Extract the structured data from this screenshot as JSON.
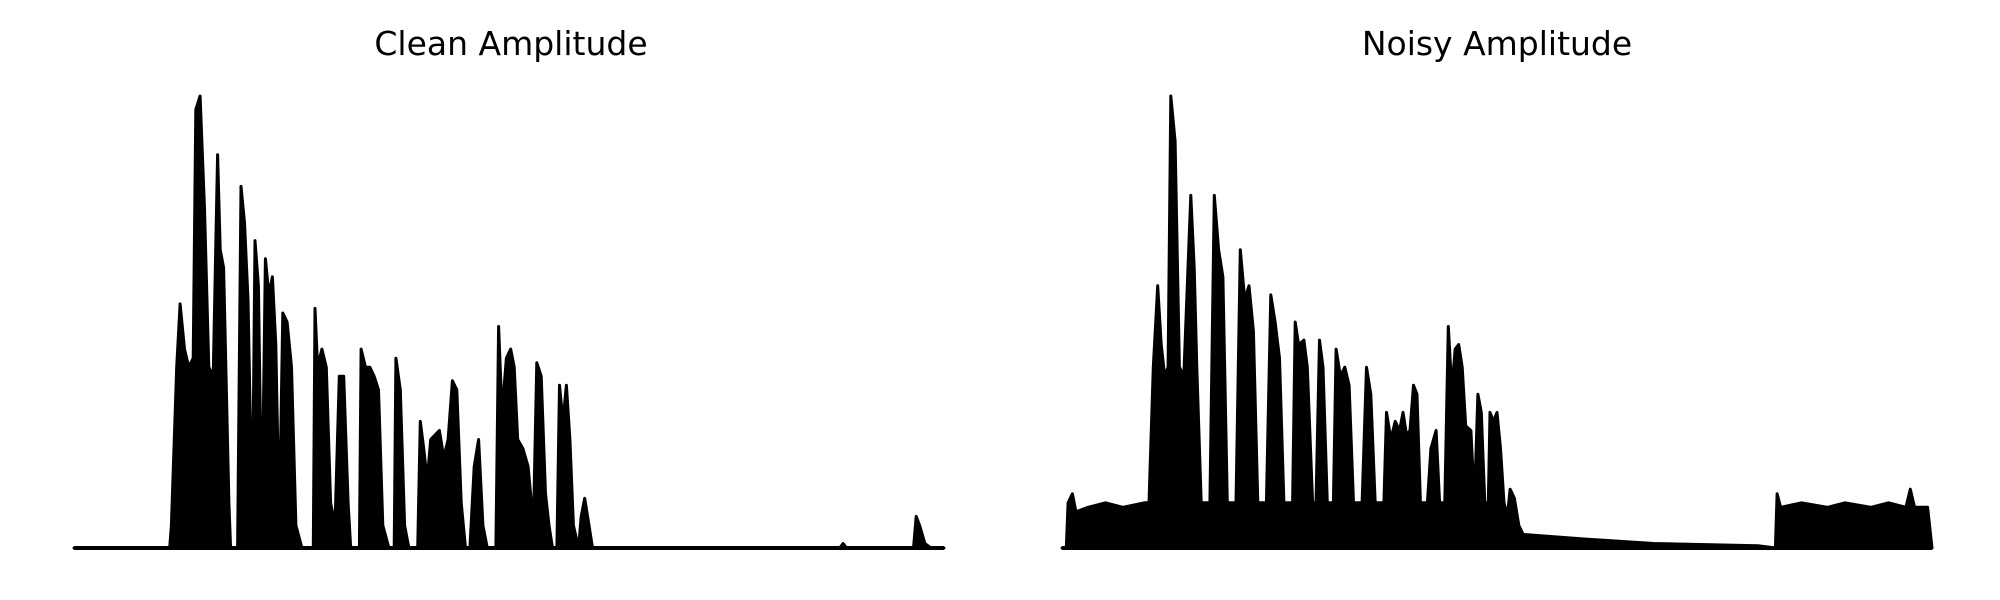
{
  "chart_data": [
    {
      "type": "area",
      "title": "Clean Amplitude",
      "xlabel": "",
      "ylabel": "",
      "axes": "off",
      "grid": false,
      "xlim": [
        0,
        1
      ],
      "ylim": [
        0,
        1
      ],
      "envelope": [
        [
          0.0,
          0.0
        ],
        [
          0.11,
          0.0
        ],
        [
          0.112,
          0.05
        ],
        [
          0.118,
          0.4
        ],
        [
          0.122,
          0.54
        ],
        [
          0.127,
          0.44
        ],
        [
          0.132,
          0.4
        ],
        [
          0.137,
          0.42
        ],
        [
          0.14,
          0.97
        ],
        [
          0.145,
          1.0
        ],
        [
          0.15,
          0.75
        ],
        [
          0.155,
          0.4
        ],
        [
          0.16,
          0.38
        ],
        [
          0.165,
          0.87
        ],
        [
          0.168,
          0.66
        ],
        [
          0.172,
          0.62
        ],
        [
          0.178,
          0.1
        ],
        [
          0.18,
          0.0
        ],
        [
          0.188,
          0.0
        ],
        [
          0.192,
          0.8
        ],
        [
          0.196,
          0.72
        ],
        [
          0.2,
          0.55
        ],
        [
          0.205,
          0.05
        ],
        [
          0.208,
          0.68
        ],
        [
          0.212,
          0.58
        ],
        [
          0.216,
          0.05
        ],
        [
          0.22,
          0.64
        ],
        [
          0.224,
          0.56
        ],
        [
          0.228,
          0.6
        ],
        [
          0.232,
          0.45
        ],
        [
          0.236,
          0.05
        ],
        [
          0.24,
          0.52
        ],
        [
          0.245,
          0.5
        ],
        [
          0.25,
          0.4
        ],
        [
          0.255,
          0.05
        ],
        [
          0.262,
          0.0
        ],
        [
          0.275,
          0.0
        ],
        [
          0.277,
          0.53
        ],
        [
          0.28,
          0.4
        ],
        [
          0.285,
          0.44
        ],
        [
          0.29,
          0.4
        ],
        [
          0.295,
          0.1
        ],
        [
          0.3,
          0.05
        ],
        [
          0.305,
          0.38
        ],
        [
          0.31,
          0.38
        ],
        [
          0.315,
          0.1
        ],
        [
          0.318,
          0.0
        ],
        [
          0.328,
          0.0
        ],
        [
          0.33,
          0.44
        ],
        [
          0.335,
          0.4
        ],
        [
          0.34,
          0.4
        ],
        [
          0.345,
          0.38
        ],
        [
          0.35,
          0.35
        ],
        [
          0.355,
          0.05
        ],
        [
          0.362,
          0.0
        ],
        [
          0.368,
          0.0
        ],
        [
          0.37,
          0.42
        ],
        [
          0.375,
          0.35
        ],
        [
          0.38,
          0.05
        ],
        [
          0.385,
          0.0
        ],
        [
          0.395,
          0.0
        ],
        [
          0.398,
          0.28
        ],
        [
          0.402,
          0.22
        ],
        [
          0.406,
          0.15
        ],
        [
          0.41,
          0.24
        ],
        [
          0.415,
          0.25
        ],
        [
          0.42,
          0.26
        ],
        [
          0.425,
          0.2
        ],
        [
          0.43,
          0.24
        ],
        [
          0.435,
          0.37
        ],
        [
          0.44,
          0.35
        ],
        [
          0.445,
          0.1
        ],
        [
          0.45,
          0.0
        ],
        [
          0.455,
          0.0
        ],
        [
          0.46,
          0.18
        ],
        [
          0.465,
          0.24
        ],
        [
          0.47,
          0.05
        ],
        [
          0.475,
          0.0
        ],
        [
          0.485,
          0.0
        ],
        [
          0.488,
          0.49
        ],
        [
          0.492,
          0.3
        ],
        [
          0.497,
          0.42
        ],
        [
          0.502,
          0.44
        ],
        [
          0.506,
          0.4
        ],
        [
          0.51,
          0.24
        ],
        [
          0.516,
          0.22
        ],
        [
          0.522,
          0.18
        ],
        [
          0.528,
          0.05
        ],
        [
          0.532,
          0.41
        ],
        [
          0.537,
          0.38
        ],
        [
          0.542,
          0.12
        ],
        [
          0.546,
          0.05
        ],
        [
          0.55,
          0.0
        ],
        [
          0.555,
          0.0
        ],
        [
          0.558,
          0.36
        ],
        [
          0.562,
          0.28
        ],
        [
          0.566,
          0.36
        ],
        [
          0.57,
          0.24
        ],
        [
          0.574,
          0.05
        ],
        [
          0.58,
          0.0
        ],
        [
          0.583,
          0.07
        ],
        [
          0.587,
          0.11
        ],
        [
          0.592,
          0.05
        ],
        [
          0.596,
          0.0
        ],
        [
          0.88,
          0.0
        ],
        [
          0.884,
          0.01
        ],
        [
          0.888,
          0.0
        ],
        [
          0.965,
          0.0
        ],
        [
          0.968,
          0.07
        ],
        [
          0.972,
          0.05
        ],
        [
          0.978,
          0.01
        ],
        [
          0.985,
          0.0
        ],
        [
          1.0,
          0.0
        ]
      ]
    },
    {
      "type": "area",
      "title": "Noisy Amplitude",
      "xlabel": "",
      "ylabel": "",
      "axes": "off",
      "grid": false,
      "xlim": [
        0,
        1
      ],
      "ylim": [
        0,
        1
      ],
      "envelope": [
        [
          0.0,
          0.0
        ],
        [
          0.005,
          0.0
        ],
        [
          0.007,
          0.1
        ],
        [
          0.012,
          0.12
        ],
        [
          0.016,
          0.08
        ],
        [
          0.03,
          0.09
        ],
        [
          0.05,
          0.1
        ],
        [
          0.07,
          0.09
        ],
        [
          0.095,
          0.1
        ],
        [
          0.1,
          0.1
        ],
        [
          0.105,
          0.4
        ],
        [
          0.11,
          0.58
        ],
        [
          0.114,
          0.45
        ],
        [
          0.118,
          0.38
        ],
        [
          0.122,
          0.4
        ],
        [
          0.125,
          1.0
        ],
        [
          0.13,
          0.9
        ],
        [
          0.135,
          0.4
        ],
        [
          0.14,
          0.38
        ],
        [
          0.148,
          0.78
        ],
        [
          0.152,
          0.62
        ],
        [
          0.155,
          0.4
        ],
        [
          0.16,
          0.1
        ],
        [
          0.17,
          0.1
        ],
        [
          0.175,
          0.78
        ],
        [
          0.18,
          0.66
        ],
        [
          0.185,
          0.6
        ],
        [
          0.19,
          0.1
        ],
        [
          0.2,
          0.1
        ],
        [
          0.205,
          0.66
        ],
        [
          0.21,
          0.55
        ],
        [
          0.215,
          0.58
        ],
        [
          0.22,
          0.48
        ],
        [
          0.225,
          0.1
        ],
        [
          0.235,
          0.1
        ],
        [
          0.24,
          0.56
        ],
        [
          0.245,
          0.5
        ],
        [
          0.25,
          0.42
        ],
        [
          0.255,
          0.1
        ],
        [
          0.265,
          0.1
        ],
        [
          0.268,
          0.5
        ],
        [
          0.272,
          0.45
        ],
        [
          0.278,
          0.46
        ],
        [
          0.282,
          0.4
        ],
        [
          0.288,
          0.1
        ],
        [
          0.292,
          0.1
        ],
        [
          0.296,
          0.46
        ],
        [
          0.3,
          0.4
        ],
        [
          0.305,
          0.1
        ],
        [
          0.312,
          0.1
        ],
        [
          0.315,
          0.44
        ],
        [
          0.32,
          0.38
        ],
        [
          0.325,
          0.4
        ],
        [
          0.33,
          0.36
        ],
        [
          0.335,
          0.1
        ],
        [
          0.345,
          0.1
        ],
        [
          0.35,
          0.4
        ],
        [
          0.355,
          0.34
        ],
        [
          0.36,
          0.1
        ],
        [
          0.37,
          0.1
        ],
        [
          0.373,
          0.3
        ],
        [
          0.378,
          0.24
        ],
        [
          0.383,
          0.28
        ],
        [
          0.388,
          0.26
        ],
        [
          0.392,
          0.3
        ],
        [
          0.396,
          0.25
        ],
        [
          0.4,
          0.26
        ],
        [
          0.404,
          0.36
        ],
        [
          0.408,
          0.34
        ],
        [
          0.412,
          0.1
        ],
        [
          0.42,
          0.1
        ],
        [
          0.424,
          0.22
        ],
        [
          0.43,
          0.26
        ],
        [
          0.434,
          0.1
        ],
        [
          0.44,
          0.1
        ],
        [
          0.444,
          0.49
        ],
        [
          0.448,
          0.35
        ],
        [
          0.452,
          0.44
        ],
        [
          0.456,
          0.45
        ],
        [
          0.46,
          0.4
        ],
        [
          0.464,
          0.27
        ],
        [
          0.47,
          0.26
        ],
        [
          0.474,
          0.1
        ],
        [
          0.478,
          0.34
        ],
        [
          0.482,
          0.3
        ],
        [
          0.486,
          0.1
        ],
        [
          0.49,
          0.1
        ],
        [
          0.492,
          0.3
        ],
        [
          0.496,
          0.28
        ],
        [
          0.5,
          0.3
        ],
        [
          0.504,
          0.22
        ],
        [
          0.508,
          0.1
        ],
        [
          0.512,
          0.07
        ],
        [
          0.515,
          0.13
        ],
        [
          0.52,
          0.11
        ],
        [
          0.525,
          0.05
        ],
        [
          0.53,
          0.03
        ],
        [
          0.6,
          0.02
        ],
        [
          0.68,
          0.01
        ],
        [
          0.8,
          0.005
        ],
        [
          0.82,
          0.0
        ],
        [
          0.822,
          0.12
        ],
        [
          0.826,
          0.09
        ],
        [
          0.85,
          0.1
        ],
        [
          0.88,
          0.09
        ],
        [
          0.9,
          0.1
        ],
        [
          0.93,
          0.09
        ],
        [
          0.95,
          0.1
        ],
        [
          0.97,
          0.09
        ],
        [
          0.975,
          0.13
        ],
        [
          0.98,
          0.09
        ],
        [
          0.995,
          0.09
        ],
        [
          1.0,
          0.0
        ]
      ]
    }
  ]
}
